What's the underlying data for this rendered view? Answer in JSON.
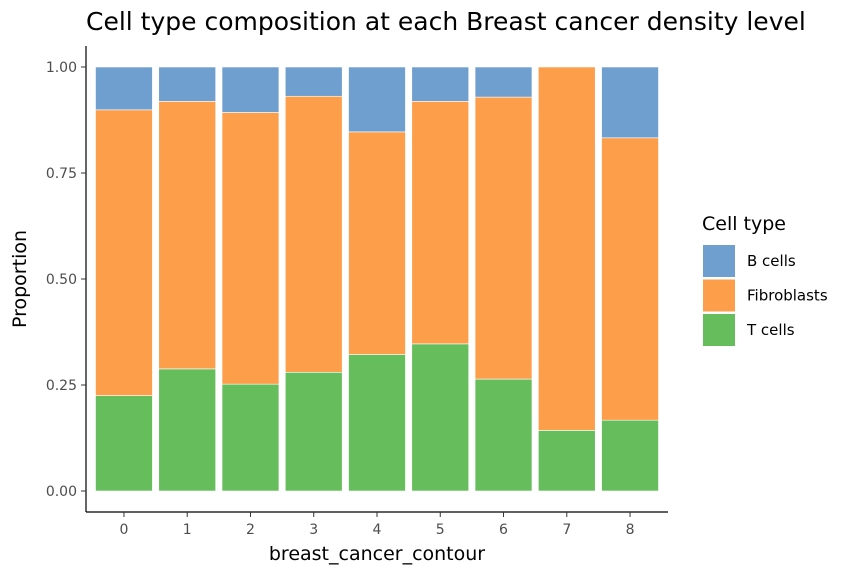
{
  "chart_data": {
    "type": "bar",
    "stacked": true,
    "title": "Cell type composition at each Breast cancer density level",
    "xlabel": "breast_cancer_contour",
    "ylabel": "Proportion",
    "categories": [
      "0",
      "1",
      "2",
      "3",
      "4",
      "5",
      "6",
      "7",
      "8"
    ],
    "ylim": [
      0,
      1
    ],
    "yticks": [
      "0.00",
      "0.25",
      "0.50",
      "0.75",
      "1.00"
    ],
    "ytick_values": [
      0,
      0.25,
      0.5,
      0.75,
      1.0
    ],
    "legend_title": "Cell type",
    "legend_position": "right",
    "grid": false,
    "series": [
      {
        "name": "B cells",
        "color": "#6f9fcf",
        "values": [
          0.101,
          0.081,
          0.107,
          0.069,
          0.153,
          0.081,
          0.071,
          0.0,
          0.167
        ]
      },
      {
        "name": "Fibroblasts",
        "color": "#fd9e4a",
        "values": [
          0.674,
          0.631,
          0.641,
          0.651,
          0.525,
          0.572,
          0.665,
          0.857,
          0.666
        ]
      },
      {
        "name": "T cells",
        "color": "#66bd5c",
        "values": [
          0.225,
          0.288,
          0.252,
          0.28,
          0.322,
          0.347,
          0.264,
          0.143,
          0.167
        ]
      }
    ],
    "stack_order_bottom_to_top": [
      "T cells",
      "Fibroblasts",
      "B cells"
    ]
  }
}
